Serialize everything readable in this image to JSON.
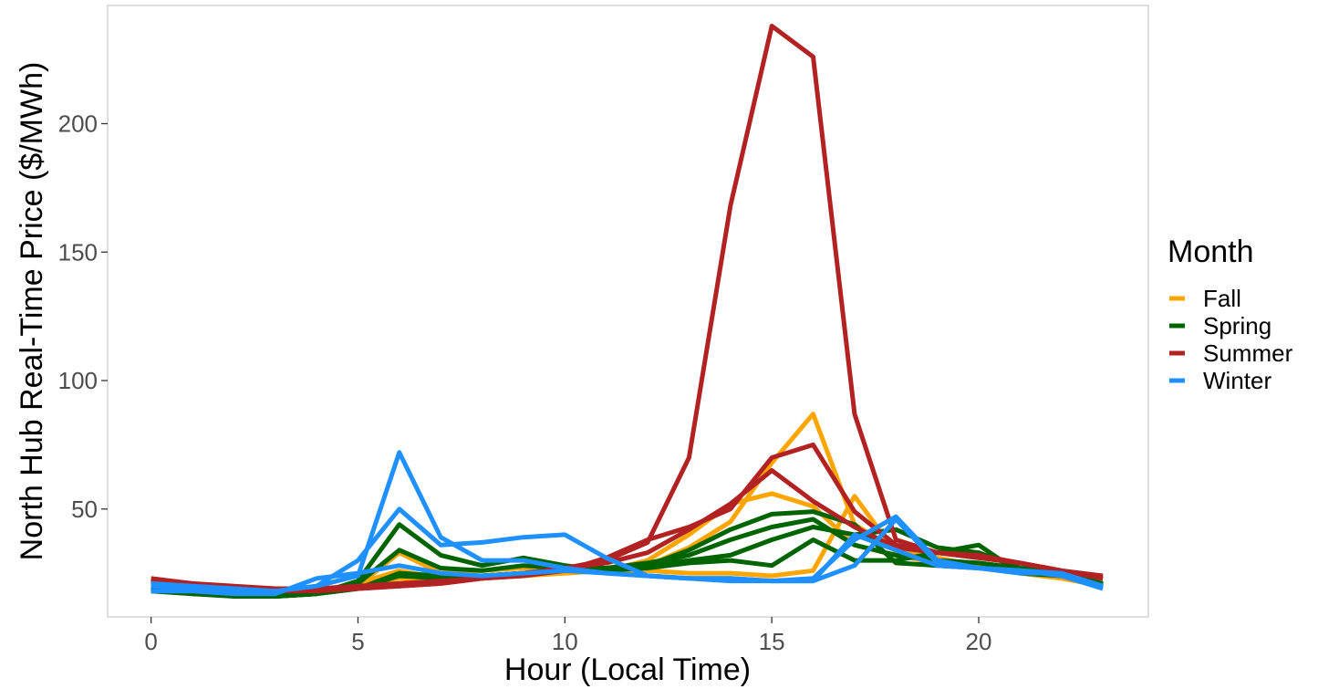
{
  "chart_data": {
    "type": "line",
    "xlabel": "Hour (Local Time)",
    "ylabel": "North Hub Real-Time Price ($/MWh)",
    "xlim": [
      -1.05,
      24.1
    ],
    "ylim": [
      8,
      246
    ],
    "x_ticks": [
      0,
      5,
      10,
      15,
      20
    ],
    "y_ticks": [
      50,
      100,
      150,
      200
    ],
    "grid": false,
    "legend": {
      "title": "Month",
      "position": "right",
      "entries": [
        {
          "label": "Fall",
          "color": "#FFA500"
        },
        {
          "label": "Spring",
          "color": "#006400"
        },
        {
          "label": "Summer",
          "color": "#B22222"
        },
        {
          "label": "Winter",
          "color": "#1E90FF"
        }
      ]
    },
    "x": [
      0,
      1,
      2,
      3,
      4,
      5,
      6,
      7,
      8,
      9,
      10,
      11,
      12,
      13,
      14,
      15,
      16,
      17,
      18,
      19,
      20,
      21,
      22,
      23
    ],
    "series": [
      {
        "group": "Fall",
        "color": "#FFA500",
        "values": [
          19,
          18,
          17,
          16,
          17,
          20,
          33,
          25,
          26,
          27,
          26,
          26,
          28,
          35,
          45,
          68,
          87,
          44,
          34,
          31,
          28,
          26,
          25,
          21
        ]
      },
      {
        "group": "Fall",
        "color": "#FFA500",
        "values": [
          20,
          18,
          17,
          16,
          18,
          21,
          26,
          23,
          24,
          25,
          25,
          26,
          30,
          40,
          52,
          56,
          51,
          36,
          32,
          29,
          27,
          25,
          23,
          20
        ]
      },
      {
        "group": "Fall",
        "color": "#FFA500",
        "values": [
          19,
          18,
          17,
          17,
          18,
          20,
          23,
          22,
          23,
          24,
          25,
          26,
          26,
          25,
          25,
          24,
          26,
          55,
          33,
          30,
          28,
          26,
          24,
          20
        ]
      },
      {
        "group": "Spring",
        "color": "#006400",
        "values": [
          19,
          17,
          17,
          16,
          17,
          22,
          44,
          32,
          28,
          31,
          28,
          26,
          28,
          34,
          42,
          48,
          49,
          44,
          29,
          28,
          27,
          26,
          24,
          20
        ]
      },
      {
        "group": "Spring",
        "color": "#006400",
        "values": [
          20,
          18,
          17,
          16,
          17,
          21,
          34,
          27,
          26,
          28,
          27,
          27,
          29,
          32,
          38,
          43,
          46,
          36,
          32,
          30,
          29,
          27,
          25,
          21
        ]
      },
      {
        "group": "Spring",
        "color": "#006400",
        "values": [
          19,
          18,
          17,
          17,
          17,
          19,
          25,
          24,
          24,
          25,
          26,
          27,
          28,
          30,
          32,
          38,
          43,
          40,
          42,
          35,
          33,
          27,
          25,
          21
        ]
      },
      {
        "group": "Spring",
        "color": "#006400",
        "values": [
          18,
          17,
          16,
          16,
          17,
          19,
          24,
          23,
          24,
          25,
          26,
          26,
          27,
          29,
          30,
          28,
          38,
          30,
          30,
          33,
          36,
          25,
          24,
          20
        ]
      },
      {
        "group": "Summer",
        "color": "#B22222",
        "values": [
          23,
          21,
          20,
          19,
          19,
          20,
          21,
          22,
          23,
          25,
          27,
          30,
          37,
          70,
          168,
          238,
          226,
          87,
          38,
          33,
          31,
          29,
          26,
          24
        ]
      },
      {
        "group": "Summer",
        "color": "#B22222",
        "values": [
          22,
          20,
          19,
          19,
          19,
          19,
          20,
          21,
          23,
          25,
          27,
          29,
          33,
          42,
          52,
          65,
          53,
          43,
          35,
          33,
          31,
          29,
          26,
          23
        ]
      },
      {
        "group": "Summer",
        "color": "#B22222",
        "values": [
          22,
          20,
          19,
          18,
          18,
          19,
          20,
          21,
          23,
          24,
          26,
          31,
          38,
          43,
          50,
          70,
          75,
          49,
          36,
          33,
          32,
          29,
          26,
          23
        ]
      },
      {
        "group": "Winter",
        "color": "#1E90FF",
        "values": [
          21,
          20,
          19,
          18,
          20,
          24,
          72,
          39,
          30,
          30,
          27,
          25,
          24,
          23,
          23,
          22,
          22,
          40,
          34,
          28,
          27,
          26,
          25,
          20
        ]
      },
      {
        "group": "Winter",
        "color": "#1E90FF",
        "values": [
          20,
          19,
          18,
          18,
          20,
          30,
          50,
          36,
          37,
          39,
          40,
          31,
          24,
          23,
          23,
          22,
          23,
          38,
          47,
          30,
          27,
          25,
          25,
          20
        ]
      },
      {
        "group": "Winter",
        "color": "#1E90FF",
        "values": [
          18,
          18,
          17,
          17,
          23,
          25,
          28,
          25,
          24,
          25,
          26,
          25,
          24,
          23,
          22,
          22,
          22,
          28,
          46,
          29,
          27,
          26,
          24,
          19
        ]
      }
    ]
  }
}
